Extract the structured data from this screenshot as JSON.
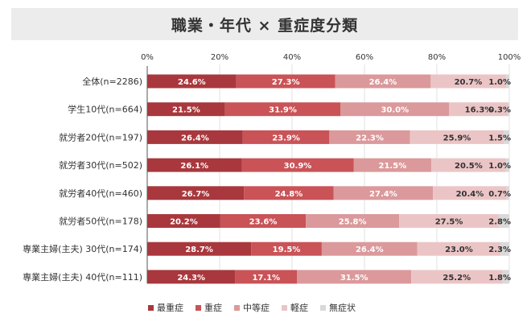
{
  "chart_data": {
    "type": "bar",
    "orientation": "horizontal",
    "stacked": true,
    "title": "職業・年代 × 重症度分類",
    "categories": [
      "全体(n=2286)",
      "学生10代(n=664)",
      "就労者20代(n=197)",
      "就労者30代(n=502)",
      "就労者40代(n=460)",
      "就労者50代(n=178)",
      "専業主婦(主夫) 30代(n=174)",
      "専業主婦(主夫) 40代(n=111)"
    ],
    "xlim": [
      0,
      100
    ],
    "x_ticks": [
      "0%",
      "20%",
      "40%",
      "60%",
      "80%",
      "100%"
    ],
    "grid": true,
    "legend_position": "bottom",
    "series": [
      {
        "name": "最重症",
        "color": "#a8383d",
        "text_color": "#ffffff",
        "values": [
          24.6,
          21.5,
          26.4,
          26.1,
          26.7,
          20.2,
          28.7,
          24.3
        ]
      },
      {
        "name": "重症",
        "color": "#c95357",
        "text_color": "#ffffff",
        "values": [
          27.3,
          31.9,
          23.9,
          30.9,
          24.8,
          23.6,
          19.5,
          17.1
        ]
      },
      {
        "name": "中等症",
        "color": "#db999b",
        "text_color": "#ffffff",
        "values": [
          26.4,
          30.0,
          22.3,
          21.5,
          27.4,
          25.8,
          26.4,
          31.5
        ]
      },
      {
        "name": "軽症",
        "color": "#ebc5c6",
        "text_color": "#333333",
        "values": [
          20.7,
          16.3,
          25.9,
          20.5,
          20.4,
          27.5,
          23.0,
          25.2
        ]
      },
      {
        "name": "無症状",
        "color": "#d9d9d9",
        "text_color": "#333333",
        "values": [
          1.0,
          0.3,
          1.5,
          1.0,
          0.7,
          2.8,
          2.3,
          1.8
        ]
      }
    ]
  }
}
